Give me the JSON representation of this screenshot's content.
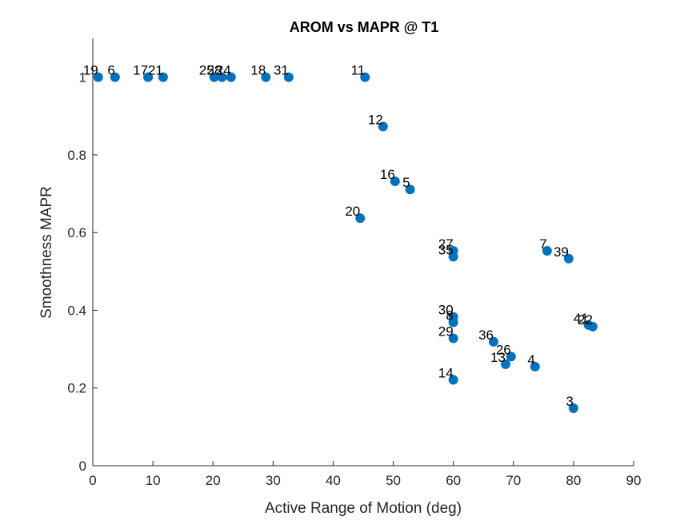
{
  "chart_data": {
    "type": "scatter",
    "title": "AROM vs MAPR @ T1",
    "xlabel": "Active Range of Motion (deg)",
    "ylabel": "Smoothness MAPR",
    "xlim": [
      0,
      90
    ],
    "ylim": [
      0,
      1.1
    ],
    "xticks": [
      0,
      10,
      20,
      30,
      40,
      50,
      60,
      70,
      80,
      90
    ],
    "yticks": [
      0,
      0.2,
      0.4,
      0.6,
      0.8,
      1
    ],
    "xtick_labels": [
      "0",
      "10",
      "20",
      "30",
      "40",
      "50",
      "60",
      "70",
      "80",
      "90"
    ],
    "ytick_labels": [
      "0",
      "0.2",
      "0.4",
      "0.6",
      "0.8",
      "1"
    ],
    "grid": false,
    "marker_color": "#0072BD",
    "points": [
      {
        "label": "19",
        "x": 0.9,
        "y": 1.0
      },
      {
        "label": "6",
        "x": 3.7,
        "y": 1.0
      },
      {
        "label": "17",
        "x": 9.2,
        "y": 1.0
      },
      {
        "label": "21",
        "x": 11.7,
        "y": 1.0
      },
      {
        "label": "25",
        "x": 20.2,
        "y": 1.0
      },
      {
        "label": "28",
        "x": 21.5,
        "y": 1.0
      },
      {
        "label": "24",
        "x": 23.0,
        "y": 1.0
      },
      {
        "label": "18",
        "x": 28.8,
        "y": 1.0
      },
      {
        "label": "31",
        "x": 32.6,
        "y": 1.0
      },
      {
        "label": "11",
        "x": 45.3,
        "y": 1.0
      },
      {
        "label": "12",
        "x": 48.3,
        "y": 0.873
      },
      {
        "label": "16",
        "x": 50.3,
        "y": 0.732
      },
      {
        "label": "5",
        "x": 52.8,
        "y": 0.711
      },
      {
        "label": "20",
        "x": 44.5,
        "y": 0.637
      },
      {
        "label": "27",
        "x": 60.0,
        "y": 0.553
      },
      {
        "label": "35",
        "x": 60.0,
        "y": 0.538
      },
      {
        "label": "7",
        "x": 75.6,
        "y": 0.553
      },
      {
        "label": "39",
        "x": 79.2,
        "y": 0.533
      },
      {
        "label": "30",
        "x": 60.0,
        "y": 0.383
      },
      {
        "label": "8",
        "x": 60.0,
        "y": 0.369
      },
      {
        "label": "29",
        "x": 60.0,
        "y": 0.328
      },
      {
        "label": "36",
        "x": 66.7,
        "y": 0.319
      },
      {
        "label": "26",
        "x": 69.6,
        "y": 0.281
      },
      {
        "label": "13",
        "x": 68.7,
        "y": 0.261
      },
      {
        "label": "4",
        "x": 73.6,
        "y": 0.255
      },
      {
        "label": "41",
        "x": 82.5,
        "y": 0.362
      },
      {
        "label": "22",
        "x": 83.2,
        "y": 0.358
      },
      {
        "label": "14",
        "x": 60.0,
        "y": 0.221
      },
      {
        "label": "3",
        "x": 80.0,
        "y": 0.148
      }
    ]
  }
}
